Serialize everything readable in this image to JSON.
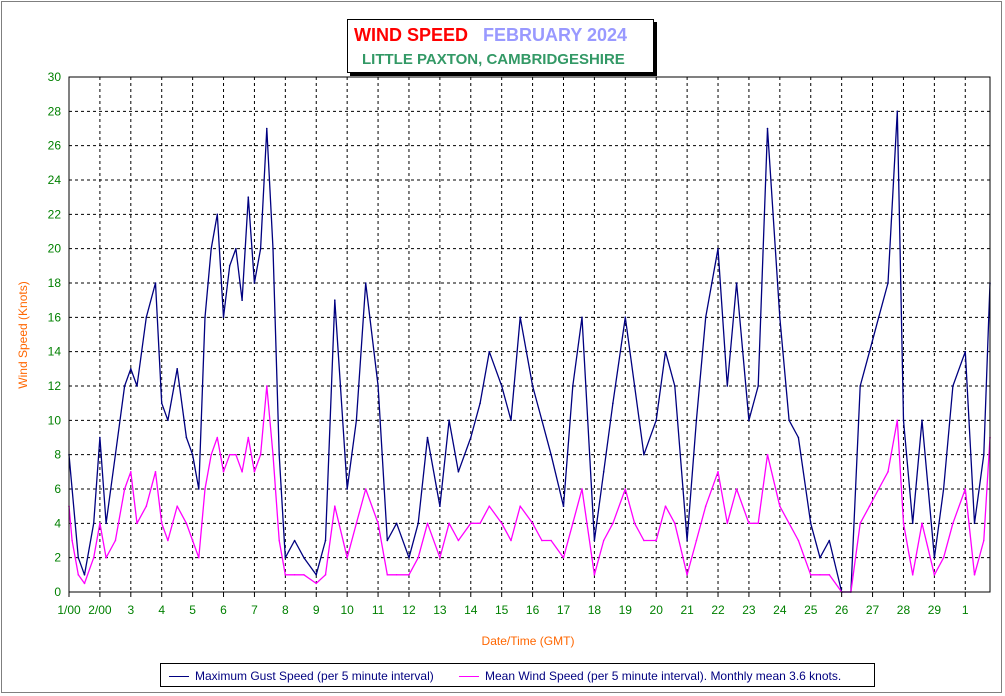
{
  "title": {
    "main": "WIND SPEED",
    "month": "FEBRUARY 2024",
    "location": "LITTLE PAXTON, CAMBRIDGESHIRE"
  },
  "legend": {
    "gust": "Maximum Gust Speed (per 5 minute interval)",
    "mean": "Mean Wind Speed (per 5 minute interval). Monthly mean 3.6 knots."
  },
  "colors": {
    "gust": "#000080",
    "mean": "#ff00ff",
    "axis_text": "#008000",
    "axis_label": "#ff6600",
    "grid": "#008000"
  },
  "chart_data": {
    "type": "line",
    "xlabel": "Date/Time (GMT)",
    "ylabel": "Wind Speed (Knots)",
    "ylim": [
      0,
      30
    ],
    "xlim": [
      0,
      29.8
    ],
    "x_ticks": [
      "1/00",
      "2/00",
      "3",
      "4",
      "5",
      "6",
      "7",
      "8",
      "9",
      "10",
      "11",
      "12",
      "13",
      "14",
      "15",
      "16",
      "17",
      "18",
      "19",
      "20",
      "21",
      "22",
      "23",
      "24",
      "25",
      "26",
      "27",
      "28",
      "29",
      "1"
    ],
    "y_ticks": [
      0,
      2,
      4,
      6,
      8,
      10,
      12,
      14,
      16,
      18,
      20,
      22,
      24,
      26,
      28,
      30
    ],
    "grid": true,
    "legend_position": "bottom",
    "series": [
      {
        "name": "Maximum Gust Speed (per 5 minute interval)",
        "x": [
          0,
          0.1,
          0.3,
          0.5,
          0.8,
          1.0,
          1.2,
          1.5,
          1.8,
          2.0,
          2.2,
          2.5,
          2.8,
          3.0,
          3.2,
          3.5,
          3.8,
          4.0,
          4.2,
          4.4,
          4.6,
          4.8,
          5.0,
          5.2,
          5.4,
          5.6,
          5.8,
          6.0,
          6.2,
          6.4,
          6.6,
          6.8,
          7.0,
          7.3,
          7.6,
          8.0,
          8.3,
          8.6,
          9.0,
          9.3,
          9.6,
          10.0,
          10.3,
          10.6,
          11.0,
          11.3,
          11.6,
          12.0,
          12.3,
          12.6,
          13.0,
          13.3,
          13.6,
          14.0,
          14.3,
          14.6,
          15.0,
          15.3,
          15.6,
          16.0,
          16.3,
          16.6,
          17.0,
          17.3,
          17.6,
          18.0,
          18.3,
          18.6,
          19.0,
          19.3,
          19.6,
          20.0,
          20.3,
          20.6,
          21.0,
          21.3,
          21.6,
          22.0,
          22.3,
          22.6,
          23.0,
          23.3,
          23.6,
          24.0,
          24.3,
          24.6,
          25.0,
          25.3,
          25.6,
          25.9,
          26.2,
          26.5,
          26.8,
          27.0,
          27.3,
          27.6,
          28.0,
          28.3,
          28.6,
          29.0,
          29.3,
          29.6,
          29.8
        ],
        "y": [
          8,
          6,
          2,
          1,
          4,
          9,
          4,
          8,
          12,
          13,
          12,
          16,
          18,
          11,
          10,
          13,
          9,
          8,
          6,
          16,
          20,
          22,
          16,
          19,
          20,
          17,
          23,
          18,
          20,
          27,
          20,
          8,
          2,
          3,
          2,
          1,
          3,
          17,
          6,
          10,
          18,
          12,
          3,
          4,
          2,
          4,
          9,
          5,
          10,
          7,
          9,
          11,
          14,
          12,
          10,
          16,
          12,
          10,
          8,
          5,
          12,
          16,
          3,
          7,
          11,
          16,
          12,
          8,
          10,
          14,
          12,
          3,
          10,
          16,
          20,
          12,
          18,
          10,
          12,
          27,
          16,
          10,
          9,
          4,
          2,
          3,
          0,
          0,
          12,
          14,
          16,
          18,
          28,
          10,
          4,
          10,
          2,
          6,
          12,
          14,
          4,
          8,
          18
        ]
      },
      {
        "name": "Mean Wind Speed (per 5 minute interval). Monthly mean 3.6 knots.",
        "x": [
          0,
          0.1,
          0.3,
          0.5,
          0.8,
          1.0,
          1.2,
          1.5,
          1.8,
          2.0,
          2.2,
          2.5,
          2.8,
          3.0,
          3.2,
          3.5,
          3.8,
          4.0,
          4.2,
          4.4,
          4.6,
          4.8,
          5.0,
          5.2,
          5.4,
          5.6,
          5.8,
          6.0,
          6.2,
          6.4,
          6.6,
          6.8,
          7.0,
          7.3,
          7.6,
          8.0,
          8.3,
          8.6,
          9.0,
          9.3,
          9.6,
          10.0,
          10.3,
          10.6,
          11.0,
          11.3,
          11.6,
          12.0,
          12.3,
          12.6,
          13.0,
          13.3,
          13.6,
          14.0,
          14.3,
          14.6,
          15.0,
          15.3,
          15.6,
          16.0,
          16.3,
          16.6,
          17.0,
          17.3,
          17.6,
          18.0,
          18.3,
          18.6,
          19.0,
          19.3,
          19.6,
          20.0,
          20.3,
          20.6,
          21.0,
          21.3,
          21.6,
          22.0,
          22.3,
          22.6,
          23.0,
          23.3,
          23.6,
          24.0,
          24.3,
          24.6,
          25.0,
          25.3,
          25.6,
          25.9,
          26.2,
          26.5,
          26.8,
          27.0,
          27.3,
          27.6,
          28.0,
          28.3,
          28.6,
          29.0,
          29.3,
          29.6,
          29.8
        ],
        "y": [
          5,
          3,
          1,
          0.5,
          2,
          4,
          2,
          3,
          6,
          7,
          4,
          5,
          7,
          4,
          3,
          5,
          4,
          3,
          2,
          6,
          8,
          9,
          7,
          8,
          8,
          7,
          9,
          7,
          8,
          12,
          8,
          3,
          1,
          1,
          1,
          0.5,
          1,
          5,
          2,
          4,
          6,
          4,
          1,
          1,
          1,
          2,
          4,
          2,
          4,
          3,
          4,
          4,
          5,
          4,
          3,
          5,
          4,
          3,
          3,
          2,
          4,
          6,
          1,
          3,
          4,
          6,
          4,
          3,
          3,
          5,
          4,
          1,
          3,
          5,
          7,
          4,
          6,
          4,
          4,
          8,
          5,
          4,
          3,
          1,
          1,
          1,
          0,
          0,
          4,
          5,
          6,
          7,
          10,
          4,
          1,
          4,
          1,
          2,
          4,
          6,
          1,
          3,
          9
        ]
      }
    ]
  }
}
